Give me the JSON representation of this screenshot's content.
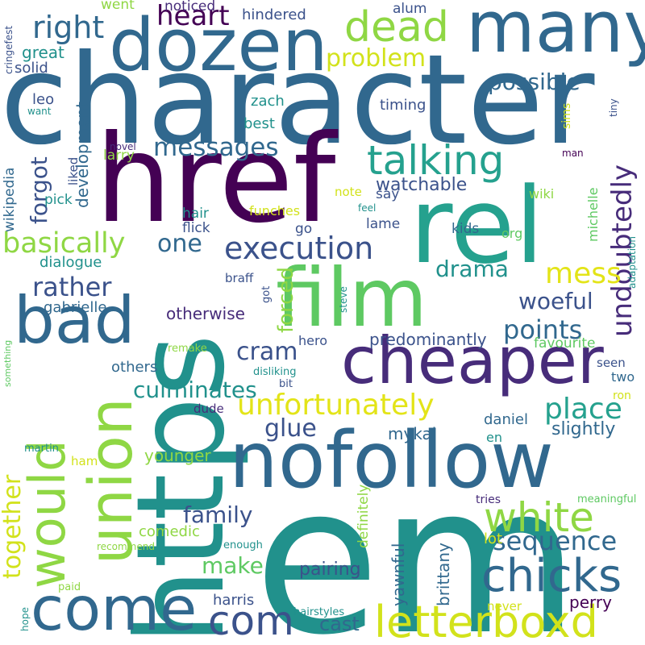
{
  "palette": {
    "dark_purple": "#440154",
    "indigo": "#472c7a",
    "blue": "#3b528b",
    "slate": "#31688e",
    "teal": "#21918c",
    "sea": "#25a18e",
    "green": "#5ec962",
    "lime": "#8fd744",
    "yellow": "#d2e21b",
    "bright_yellow": "#e3e418"
  },
  "words": [
    {
      "text": "character",
      "color": "#31688e"
    },
    {
      "text": "em",
      "color": "#21918c"
    },
    {
      "text": "href",
      "color": "#440154"
    },
    {
      "text": "rel",
      "color": "#25a18e"
    },
    {
      "text": "https",
      "color": "#21918c"
    },
    {
      "text": "nofollow",
      "color": "#31688e"
    },
    {
      "text": "film",
      "color": "#5ec962"
    },
    {
      "text": "many",
      "color": "#31688e"
    },
    {
      "text": "dozen",
      "color": "#31688e"
    },
    {
      "text": "cheaper",
      "color": "#472c7a"
    },
    {
      "text": "bad",
      "color": "#31688e"
    },
    {
      "text": "union",
      "color": "#8fd744"
    },
    {
      "text": "would",
      "color": "#8fd744"
    },
    {
      "text": "come",
      "color": "#31688e"
    },
    {
      "text": "letterboxd",
      "color": "#d2e21b"
    },
    {
      "text": "chicks",
      "color": "#31688e"
    },
    {
      "text": "white",
      "color": "#8fd744"
    },
    {
      "text": "dead",
      "color": "#8fd744"
    },
    {
      "text": "talking",
      "color": "#25a18e"
    },
    {
      "text": "com",
      "color": "#3b528b"
    },
    {
      "text": "right",
      "color": "#31688e"
    },
    {
      "text": "heart",
      "color": "#440154"
    },
    {
      "text": "problem",
      "color": "#d2e21b"
    },
    {
      "text": "possible",
      "color": "#31688e"
    },
    {
      "text": "messages",
      "color": "#31688e"
    },
    {
      "text": "execution",
      "color": "#3b528b"
    },
    {
      "text": "basically",
      "color": "#8fd744"
    },
    {
      "text": "rather",
      "color": "#3b528b"
    },
    {
      "text": "undoubtedly",
      "color": "#472c7a"
    },
    {
      "text": "unfortunately",
      "color": "#e3e418"
    },
    {
      "text": "points",
      "color": "#31688e"
    },
    {
      "text": "place",
      "color": "#25a18e"
    },
    {
      "text": "sequence",
      "color": "#31688e"
    },
    {
      "text": "mess",
      "color": "#e3e418"
    },
    {
      "text": "drama",
      "color": "#21918c"
    },
    {
      "text": "woeful",
      "color": "#3b528b"
    },
    {
      "text": "culminates",
      "color": "#21918c"
    },
    {
      "text": "glue",
      "color": "#3b528b"
    },
    {
      "text": "cram",
      "color": "#3b528b"
    },
    {
      "text": "forced",
      "color": "#8fd744"
    },
    {
      "text": "together",
      "color": "#d2e21b"
    },
    {
      "text": "family",
      "color": "#3b528b"
    },
    {
      "text": "make",
      "color": "#5ec962"
    },
    {
      "text": "cast",
      "color": "#31688e"
    },
    {
      "text": "harris",
      "color": "#3b528b"
    },
    {
      "text": "perry",
      "color": "#440154"
    },
    {
      "text": "pairing",
      "color": "#3b528b"
    },
    {
      "text": "brittany",
      "color": "#31688e"
    },
    {
      "text": "yawnful",
      "color": "#31688e"
    },
    {
      "text": "slightly",
      "color": "#31688e"
    },
    {
      "text": "predominantly",
      "color": "#3b528b"
    },
    {
      "text": "otherwise",
      "color": "#472c7a"
    },
    {
      "text": "one",
      "color": "#31688e"
    },
    {
      "text": "forgot",
      "color": "#3b528b"
    },
    {
      "text": "watchable",
      "color": "#3b528b"
    },
    {
      "text": "dialogue",
      "color": "#21918c"
    },
    {
      "text": "gabrielle",
      "color": "#31688e"
    },
    {
      "text": "others",
      "color": "#31688e"
    },
    {
      "text": "younger",
      "color": "#8fd744"
    },
    {
      "text": "comedic",
      "color": "#8fd744"
    },
    {
      "text": "mykal",
      "color": "#31688e"
    },
    {
      "text": "daniel",
      "color": "#31688e"
    },
    {
      "text": "favourite",
      "color": "#5ec962"
    },
    {
      "text": "development",
      "color": "#31688e"
    },
    {
      "text": "great",
      "color": "#21918c"
    },
    {
      "text": "solid",
      "color": "#3b528b"
    },
    {
      "text": "leo",
      "color": "#3b528b"
    },
    {
      "text": "zach",
      "color": "#21918c"
    },
    {
      "text": "best",
      "color": "#21918c"
    },
    {
      "text": "timing",
      "color": "#3b528b"
    },
    {
      "text": "hindered",
      "color": "#3b528b"
    },
    {
      "text": "noticed",
      "color": "#472c7a"
    },
    {
      "text": "went",
      "color": "#8fd744"
    },
    {
      "text": "alum",
      "color": "#3b528b"
    },
    {
      "text": "larry",
      "color": "#8fd744"
    },
    {
      "text": "pick",
      "color": "#21918c"
    },
    {
      "text": "wikipedia",
      "color": "#31688e"
    },
    {
      "text": "hair",
      "color": "#21918c"
    },
    {
      "text": "flick",
      "color": "#3b528b"
    },
    {
      "text": "funches",
      "color": "#d2e21b"
    },
    {
      "text": "go",
      "color": "#3b528b"
    },
    {
      "text": "lame",
      "color": "#3b528b"
    },
    {
      "text": "kids",
      "color": "#31688e"
    },
    {
      "text": "org",
      "color": "#5ec962"
    },
    {
      "text": "michelle",
      "color": "#5ec962"
    },
    {
      "text": "wiki",
      "color": "#8fd744"
    },
    {
      "text": "say",
      "color": "#3b528b"
    },
    {
      "text": "note",
      "color": "#d2e21b"
    },
    {
      "text": "liked",
      "color": "#3b528b"
    },
    {
      "text": "novel",
      "color": "#472c7a"
    },
    {
      "text": "braff",
      "color": "#3b528b"
    },
    {
      "text": "got",
      "color": "#3b528b"
    },
    {
      "text": "hero",
      "color": "#3b528b"
    },
    {
      "text": "steve",
      "color": "#21918c"
    },
    {
      "text": "disliking",
      "color": "#21918c"
    },
    {
      "text": "bit",
      "color": "#3b528b"
    },
    {
      "text": "dude",
      "color": "#472c7a"
    },
    {
      "text": "seen",
      "color": "#3b528b"
    },
    {
      "text": "two",
      "color": "#31688e"
    },
    {
      "text": "ron",
      "color": "#d2e21b"
    },
    {
      "text": "en",
      "color": "#21918c"
    },
    {
      "text": "remake",
      "color": "#8fd744"
    },
    {
      "text": "something",
      "color": "#5ec962"
    },
    {
      "text": "martin",
      "color": "#21918c"
    },
    {
      "text": "ham",
      "color": "#d2e21b"
    },
    {
      "text": "recommend",
      "color": "#8fd744"
    },
    {
      "text": "paid",
      "color": "#8fd744"
    },
    {
      "text": "hope",
      "color": "#21918c"
    },
    {
      "text": "enough",
      "color": "#21918c"
    },
    {
      "text": "definitely",
      "color": "#8fd744"
    },
    {
      "text": "hairstyles",
      "color": "#21918c"
    },
    {
      "text": "tries",
      "color": "#472c7a"
    },
    {
      "text": "lot",
      "color": "#d2e21b"
    },
    {
      "text": "never",
      "color": "#d2e21b"
    },
    {
      "text": "meaningful",
      "color": "#5ec962"
    },
    {
      "text": "adaptation",
      "color": "#21918c"
    },
    {
      "text": "feel",
      "color": "#21918c"
    },
    {
      "text": "man",
      "color": "#440154"
    },
    {
      "text": "tiny",
      "color": "#3b528b"
    },
    {
      "text": "sims",
      "color": "#d2e21b"
    },
    {
      "text": "want",
      "color": "#21918c"
    },
    {
      "text": "cringefest",
      "color": "#3b528b"
    }
  ]
}
